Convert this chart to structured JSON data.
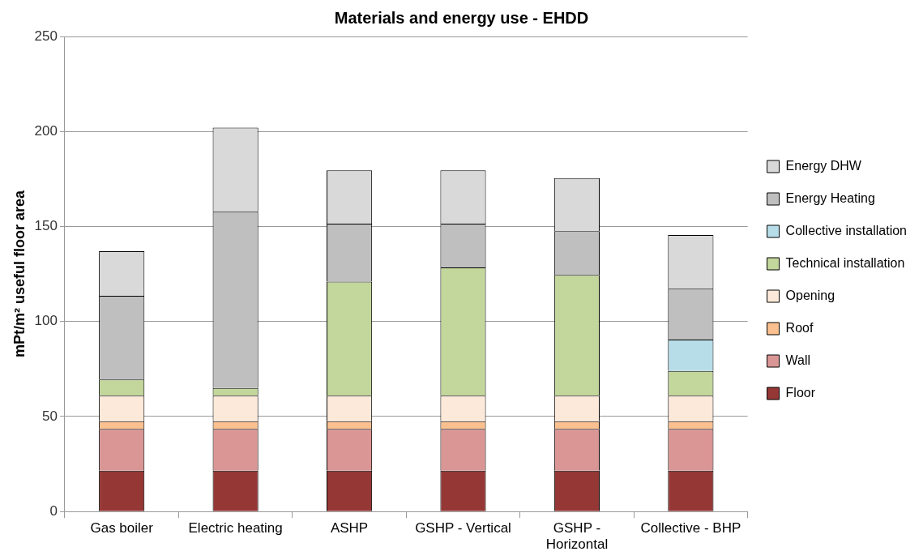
{
  "chart_data": {
    "type": "bar",
    "title": "Materials and energy use - EHDD",
    "ylabel": "mPt/m² useful floor area",
    "categories": [
      "Gas boiler",
      "Electric heating",
      "ASHP",
      "GSHP - Vertical",
      "GSHP - Horizontal",
      "Collective - BHP"
    ],
    "stacked": true,
    "ylim": [
      0,
      250
    ],
    "yticks": [
      0,
      50,
      100,
      150,
      200,
      250
    ],
    "grid": "y",
    "legend": "right",
    "series": [
      {
        "name": "Floor",
        "color": "#953735",
        "values": [
          21.5,
          21.5,
          21.5,
          21.5,
          21.5,
          21.5
        ]
      },
      {
        "name": "Wall",
        "color": "#d99694",
        "values": [
          22,
          22,
          22,
          22,
          22,
          22
        ]
      },
      {
        "name": "Roof",
        "color": "#fac090",
        "values": [
          4,
          4,
          4,
          4,
          4,
          4
        ]
      },
      {
        "name": "Opening",
        "color": "#fde9d9",
        "values": [
          13.5,
          13.5,
          13.5,
          13.5,
          13.5,
          13.5
        ]
      },
      {
        "name": "Technical installation",
        "color": "#c3d69b",
        "values": [
          8.5,
          4,
          60,
          67.5,
          63.5,
          13
        ]
      },
      {
        "name": "Collective installation",
        "color": "#b7dde8",
        "values": [
          0,
          0,
          0,
          0,
          0,
          16.5
        ]
      },
      {
        "name": "Energy Heating",
        "color": "#bfbfbf",
        "values": [
          44,
          93,
          30.5,
          23,
          23,
          27
        ]
      },
      {
        "name": "Energy DHW",
        "color": "#d9d9d9",
        "values": [
          23.5,
          44,
          28,
          28,
          28,
          28
        ]
      }
    ]
  }
}
